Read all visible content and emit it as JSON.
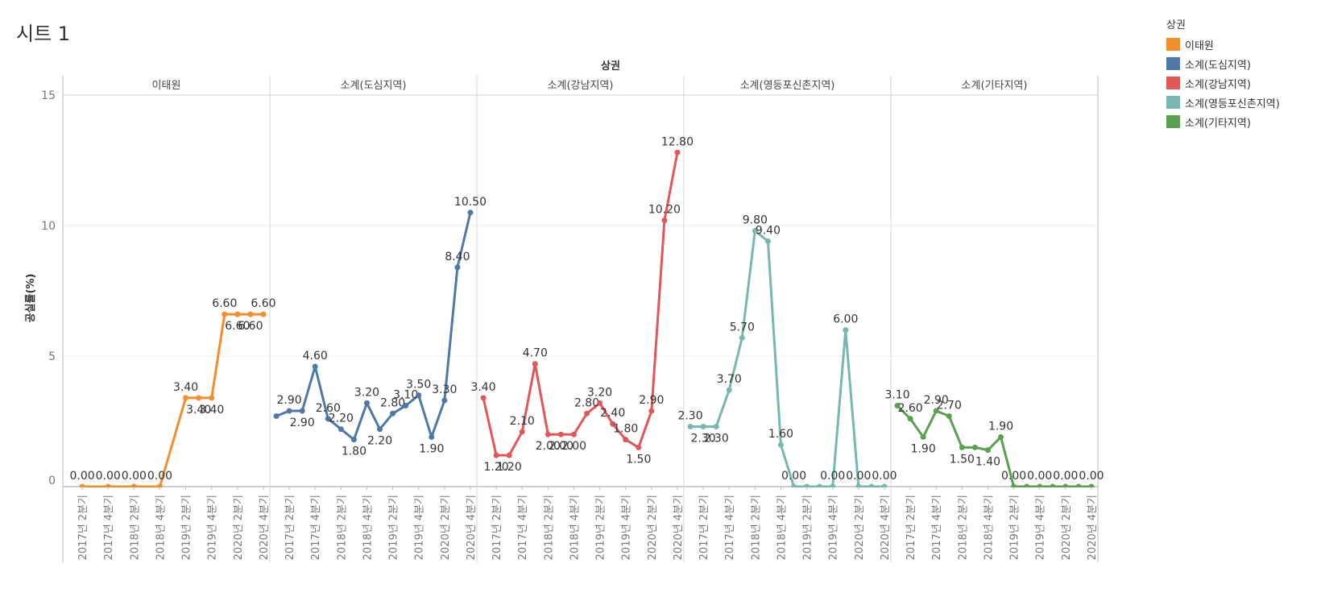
{
  "sheet_title": "시트 1",
  "legend": {
    "title": "상권",
    "items": [
      {
        "label": "이태원",
        "color": "#f28e2b"
      },
      {
        "label": "소계(도심지역)",
        "color": "#4e79a7"
      },
      {
        "label": "소계(강남지역)",
        "color": "#e15759"
      },
      {
        "label": "소계(영등포신촌지역)",
        "color": "#76b7b2"
      },
      {
        "label": "소계(기타지역)",
        "color": "#59a14f"
      }
    ]
  },
  "chart_data": {
    "type": "line",
    "title": "",
    "column_header": "상권",
    "xlabel": "",
    "ylabel": "공실률(%)",
    "ylim": [
      0,
      15
    ],
    "yticks": [
      "0",
      "5",
      "10",
      "15"
    ],
    "grid": true,
    "legend_position": "right",
    "x_tick_labels": [
      "2017년 2분기",
      "2017년 4분기",
      "2018년 2분기",
      "2018년 4분기",
      "2019년 2분기",
      "2019년 4분기",
      "2020년 2분기",
      "2020년 4분기"
    ],
    "panels": [
      {
        "name": "이태원",
        "color": "#f28e2b",
        "x": [
          "2017년 2분기",
          "2017년 4분기",
          "2018년 2분기",
          "2018년 4분기",
          "2019년 2분기",
          "2019년 3분기",
          "2019년 4분기",
          "2020년 1분기",
          "2020년 2분기",
          "2020년 3분기",
          "2020년 4분기"
        ],
        "values": [
          0.0,
          0.0,
          0.0,
          0.0,
          3.4,
          3.4,
          3.4,
          6.6,
          6.6,
          6.6,
          6.6
        ],
        "labels": [
          "0.00",
          "0.00",
          "0.00",
          "0.00",
          "3.40",
          "3.40",
          "3.40",
          "6.60",
          "6.60",
          "6.60",
          "6.60"
        ]
      },
      {
        "name": "소계(도심지역)",
        "color": "#4e79a7",
        "x": [
          "2017년 1분기",
          "2017년 2분기",
          "2017년 3분기",
          "2017년 4분기",
          "2018년 1분기",
          "2018년 2분기",
          "2018년 3분기",
          "2018년 4분기",
          "2019년 1분기",
          "2019년 2분기",
          "2019년 3분기",
          "2019년 4분기",
          "2020년 1분기",
          "2020년 2분기",
          "2020년 3분기",
          "2020년 4분기"
        ],
        "values": [
          2.7,
          2.9,
          2.9,
          4.6,
          2.6,
          2.2,
          1.8,
          3.2,
          2.2,
          2.8,
          3.1,
          3.5,
          1.9,
          3.3,
          8.4,
          10.5
        ],
        "labels": [
          "",
          "2.90",
          "2.90",
          "4.60",
          "2.60",
          "2.20",
          "1.80",
          "3.20",
          "2.20",
          "2.80",
          "3.10",
          "3.50",
          "1.90",
          "3.30",
          "8.40",
          "10.50"
        ]
      },
      {
        "name": "소계(강남지역)",
        "color": "#e15759",
        "x": [
          "2017년 1분기",
          "2017년 2분기",
          "2017년 3분기",
          "2017년 4분기",
          "2018년 1분기",
          "2018년 2분기",
          "2018년 3분기",
          "2018년 4분기",
          "2019년 1분기",
          "2019년 2분기",
          "2019년 3분기",
          "2019년 4분기",
          "2020년 1분기",
          "2020년 2분기",
          "2020년 3분기",
          "2020년 4분기"
        ],
        "values": [
          3.4,
          1.2,
          1.2,
          2.1,
          4.7,
          2.0,
          2.0,
          2.0,
          2.8,
          3.2,
          2.4,
          1.8,
          1.5,
          2.9,
          10.2,
          12.8
        ],
        "labels": [
          "3.40",
          "1.20",
          "1.20",
          "2.10",
          "4.70",
          "2.00",
          "2.00",
          "2.00",
          "2.80",
          "3.20",
          "2.40",
          "1.80",
          "1.50",
          "2.90",
          "10.20",
          "12.80"
        ]
      },
      {
        "name": "소계(영등포신촌지역)",
        "color": "#76b7b2",
        "x": [
          "2017년 1분기",
          "2017년 2분기",
          "2017년 3분기",
          "2017년 4분기",
          "2018년 1분기",
          "2018년 2분기",
          "2018년 3분기",
          "2018년 4분기",
          "2019년 1분기",
          "2019년 2분기",
          "2019년 3분기",
          "2019년 4분기",
          "2020년 1분기",
          "2020년 2분기",
          "2020년 3분기",
          "2020년 4분기"
        ],
        "values": [
          2.3,
          2.3,
          2.3,
          3.7,
          5.7,
          9.8,
          9.4,
          1.6,
          0.0,
          0.0,
          0.0,
          0.0,
          6.0,
          0.0,
          0.0,
          0.0
        ],
        "labels": [
          "2.30",
          "2.30",
          "2.30",
          "3.70",
          "5.70",
          "9.80",
          "9.40",
          "1.60",
          "0.00",
          "",
          "",
          "0.00",
          "6.00",
          "0.00",
          "",
          "0.00"
        ]
      },
      {
        "name": "소계(기타지역)",
        "color": "#59a14f",
        "x": [
          "2017년 1분기",
          "2017년 2분기",
          "2017년 3분기",
          "2017년 4분기",
          "2018년 1분기",
          "2018년 2분기",
          "2018년 3분기",
          "2018년 4분기",
          "2019년 1분기",
          "2019년 2분기",
          "2019년 3분기",
          "2019년 4분기",
          "2020년 1분기",
          "2020년 2분기",
          "2020년 3분기",
          "2020년 4분기"
        ],
        "values": [
          3.1,
          2.6,
          1.9,
          2.9,
          2.7,
          1.5,
          1.5,
          1.4,
          1.9,
          0.0,
          0.0,
          0.0,
          0.0,
          0.0,
          0.0,
          0.0
        ],
        "labels": [
          "3.10",
          "2.60",
          "1.90",
          "2.90",
          "2.70",
          "1.50",
          "",
          "1.40",
          "1.90",
          "0.00",
          "",
          "0.00",
          "",
          "0.00",
          "",
          "0.00"
        ]
      }
    ]
  }
}
